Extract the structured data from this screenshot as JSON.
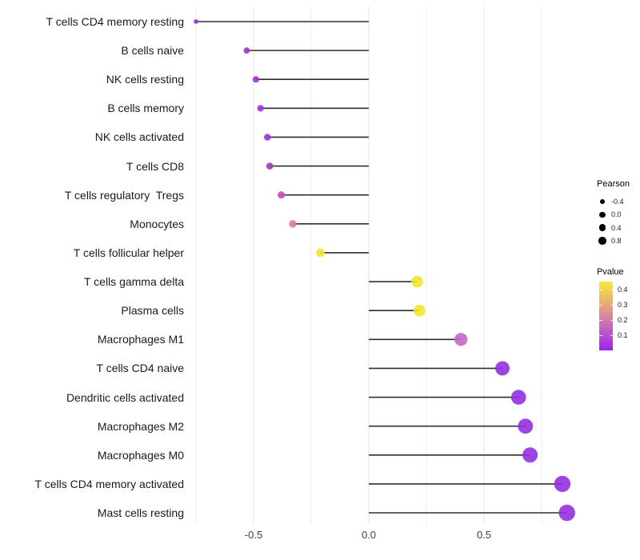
{
  "chart_data": {
    "type": "scatter",
    "style": "lollipop",
    "title": "",
    "xlabel": "",
    "ylabel": "",
    "xlim": [
      -0.85,
      0.95
    ],
    "grid": "vertical-only",
    "x_ticks": [
      {
        "value": -0.5,
        "label": "-0.5"
      },
      {
        "value": 0.0,
        "label": "0.0"
      },
      {
        "value": 0.5,
        "label": "0.5"
      }
    ],
    "gridlines": {
      "major": [
        -0.5,
        0.0,
        0.5
      ],
      "minor": [
        -0.75,
        -0.25,
        0.25,
        0.75
      ]
    },
    "points": [
      {
        "label": "T cells CD4 memory resting",
        "pearson": -0.75,
        "color": "#9B2FD6"
      },
      {
        "label": "B cells naive",
        "pearson": -0.53,
        "color": "#9C31D1"
      },
      {
        "label": "NK cells resting",
        "pearson": -0.49,
        "color": "#9C31D1"
      },
      {
        "label": "B cells memory",
        "pearson": -0.47,
        "color": "#9C31D1"
      },
      {
        "label": "NK cells activated",
        "pearson": -0.44,
        "color": "#9E33CE"
      },
      {
        "label": "T cells CD8",
        "pearson": -0.43,
        "color": "#A537C8"
      },
      {
        "label": "T cells regulatory  Tregs",
        "pearson": -0.38,
        "color": "#C250AB"
      },
      {
        "label": "Monocytes",
        "pearson": -0.33,
        "color": "#DF7E8F"
      },
      {
        "label": "T cells follicular helper",
        "pearson": -0.21,
        "color": "#F3E42C"
      },
      {
        "label": "T cells gamma delta",
        "pearson": 0.21,
        "color": "#F3E42C"
      },
      {
        "label": "Plasma cells",
        "pearson": 0.22,
        "color": "#F3E42C"
      },
      {
        "label": "Macrophages M1",
        "pearson": 0.4,
        "color": "#C766C6"
      },
      {
        "label": "T cells CD4 naive",
        "pearson": 0.58,
        "color": "#9430E0"
      },
      {
        "label": "Dendritic cells activated",
        "pearson": 0.65,
        "color": "#9430E0"
      },
      {
        "label": "Macrophages M2",
        "pearson": 0.68,
        "color": "#9430E0"
      },
      {
        "label": "Macrophages M0",
        "pearson": 0.7,
        "color": "#9430E0"
      },
      {
        "label": "T cells CD4 memory activated",
        "pearson": 0.84,
        "color": "#9330E2"
      },
      {
        "label": "Mast cells resting",
        "pearson": 0.86,
        "color": "#9330E2"
      }
    ],
    "legends": {
      "size": {
        "title": "Pearson",
        "entries": [
          {
            "label": "-0.4",
            "diameter": 6
          },
          {
            "label": "0.0",
            "diameter": 7.6
          },
          {
            "label": "0.4",
            "diameter": 8.6
          },
          {
            "label": "0.8",
            "diameter": 9.6
          }
        ],
        "symbol_color": "#000000"
      },
      "color": {
        "title": "Pvalue",
        "ticks": [
          "0.4",
          "0.3",
          "0.2",
          "0.1"
        ],
        "gradient_stops": [
          "#A021EE 0%",
          "#C05FC6 30%",
          "#D8879E 50%",
          "#EAAF72 70%",
          "#F2CC55 85%",
          "#F8E92B 100%"
        ]
      }
    },
    "style_colors": {
      "stem": "#2F2F2F",
      "gridline_major": "#E3E3E3",
      "gridline_minor": "#EFEFEF",
      "background": "#FFFFFF"
    }
  }
}
